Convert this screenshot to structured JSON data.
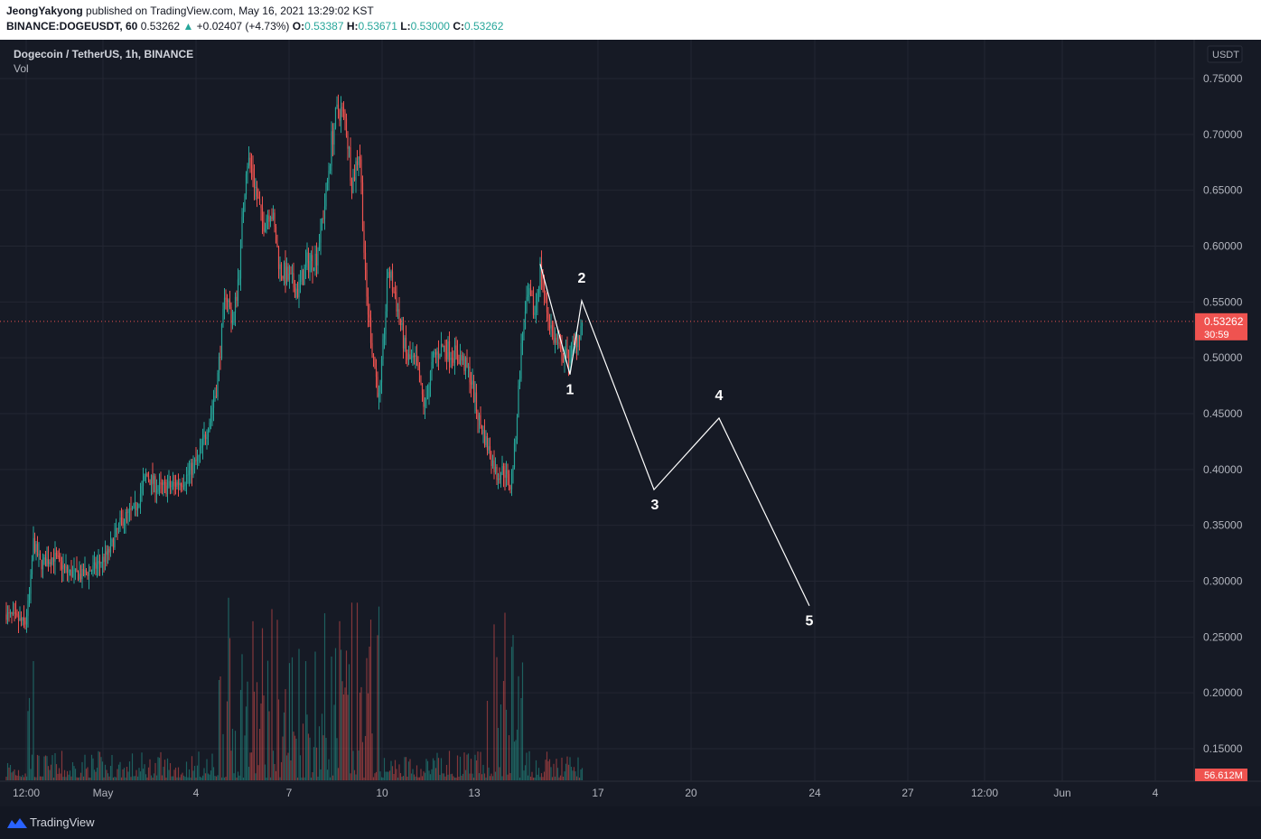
{
  "header": {
    "author": "JeongYakyong",
    "published_text": "published on TradingView.com, May 16, 2021 13:29:02 KST",
    "symbol_line": "BINANCE:DOGEUSDT, 60",
    "last": "0.53262",
    "change": "+0.02407 (+4.73%)",
    "o_label": "O:",
    "o": "0.53387",
    "h_label": "H:",
    "h": "0.53671",
    "l_label": "L:",
    "l": "0.53000",
    "c_label": "C:",
    "c": "0.53262"
  },
  "legend": {
    "title": "Dogecoin / TetherUS, 1h, BINANCE",
    "vol": "Vol"
  },
  "footer": {
    "brand": "TradingView"
  },
  "colors": {
    "up": "#26a69a",
    "down": "#ef5350",
    "bg": "#161a25",
    "grid": "#232632",
    "axis_text": "#b2b5be"
  },
  "chart_data": {
    "type": "candlestick",
    "currency_label": "USDT",
    "y_ticks": [
      "0.75000",
      "0.70000",
      "0.65000",
      "0.60000",
      "0.55000",
      "0.50000",
      "0.45000",
      "0.40000",
      "0.35000",
      "0.30000",
      "0.25000",
      "0.20000",
      "0.15000"
    ],
    "ylim": [
      0.115,
      0.78
    ],
    "x_ticks": [
      "12:00",
      "May",
      "4",
      "7",
      "10",
      "13",
      "17",
      "20",
      "24",
      "27",
      "12:00",
      "Jun",
      "4"
    ],
    "current_price": "0.53262",
    "countdown": "30:59",
    "volume_label": "56.612M",
    "price_path": [
      [
        0,
        0.272
      ],
      [
        15,
        0.268
      ],
      [
        28,
        0.262
      ],
      [
        33,
        0.29
      ],
      [
        37,
        0.335
      ],
      [
        45,
        0.315
      ],
      [
        60,
        0.322
      ],
      [
        75,
        0.308
      ],
      [
        90,
        0.305
      ],
      [
        105,
        0.312
      ],
      [
        120,
        0.325
      ],
      [
        135,
        0.355
      ],
      [
        150,
        0.365
      ],
      [
        162,
        0.395
      ],
      [
        175,
        0.383
      ],
      [
        190,
        0.385
      ],
      [
        205,
        0.392
      ],
      [
        220,
        0.41
      ],
      [
        232,
        0.445
      ],
      [
        240,
        0.475
      ],
      [
        250,
        0.56
      ],
      [
        258,
        0.53
      ],
      [
        265,
        0.58
      ],
      [
        273,
        0.68
      ],
      [
        280,
        0.665
      ],
      [
        290,
        0.62
      ],
      [
        300,
        0.635
      ],
      [
        310,
        0.58
      ],
      [
        320,
        0.57
      ],
      [
        330,
        0.56
      ],
      [
        340,
        0.585
      ],
      [
        350,
        0.59
      ],
      [
        360,
        0.64
      ],
      [
        368,
        0.7
      ],
      [
        375,
        0.725
      ],
      [
        383,
        0.71
      ],
      [
        390,
        0.655
      ],
      [
        398,
        0.69
      ],
      [
        405,
        0.56
      ],
      [
        412,
        0.51
      ],
      [
        420,
        0.46
      ],
      [
        430,
        0.58
      ],
      [
        440,
        0.545
      ],
      [
        450,
        0.5
      ],
      [
        460,
        0.495
      ],
      [
        470,
        0.455
      ],
      [
        480,
        0.5
      ],
      [
        490,
        0.51
      ],
      [
        500,
        0.505
      ],
      [
        510,
        0.5
      ],
      [
        520,
        0.485
      ],
      [
        530,
        0.445
      ],
      [
        540,
        0.42
      ],
      [
        550,
        0.395
      ],
      [
        558,
        0.4
      ],
      [
        565,
        0.385
      ],
      [
        570,
        0.42
      ],
      [
        578,
        0.52
      ],
      [
        585,
        0.555
      ],
      [
        592,
        0.54
      ],
      [
        598,
        0.58
      ],
      [
        605,
        0.545
      ],
      [
        612,
        0.52
      ],
      [
        620,
        0.505
      ],
      [
        628,
        0.5
      ],
      [
        636,
        0.512
      ],
      [
        645,
        0.532
      ]
    ],
    "annotations": [
      {
        "label": "1",
        "x": "May 16",
        "y": 0.485
      },
      {
        "label": "2",
        "x": "May 16",
        "y": 0.551
      },
      {
        "label": "3",
        "x": "May 18",
        "y": 0.382
      },
      {
        "label": "4",
        "x": "May 21",
        "y": 0.446
      },
      {
        "label": "5",
        "x": "May 24",
        "y": 0.278
      }
    ]
  }
}
